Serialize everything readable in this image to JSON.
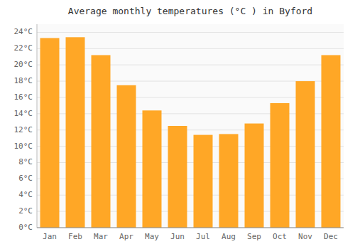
{
  "chart_data": {
    "type": "bar",
    "title": "Average monthly temperatures (°C ) in Byford",
    "categories": [
      "Jan",
      "Feb",
      "Mar",
      "Apr",
      "May",
      "Jun",
      "Jul",
      "Aug",
      "Sep",
      "Oct",
      "Nov",
      "Dec"
    ],
    "values": [
      23.3,
      23.4,
      21.2,
      17.5,
      14.4,
      12.5,
      11.4,
      11.5,
      12.8,
      15.3,
      18.0,
      21.2
    ],
    "color": "#FFA726",
    "ylim": [
      0,
      25
    ],
    "yticks": [
      {
        "value": 0,
        "label": "0°C"
      },
      {
        "value": 2,
        "label": "2°C"
      },
      {
        "value": 4,
        "label": "4°C"
      },
      {
        "value": 6,
        "label": "6°C"
      },
      {
        "value": 8,
        "label": "8°C"
      },
      {
        "value": 10,
        "label": "10°C"
      },
      {
        "value": 12,
        "label": "12°C"
      },
      {
        "value": 14,
        "label": "14°C"
      },
      {
        "value": 16,
        "label": "16°C"
      },
      {
        "value": 18,
        "label": "18°C"
      },
      {
        "value": 20,
        "label": "20°C"
      },
      {
        "value": 22,
        "label": "22°C"
      },
      {
        "value": 24,
        "label": "24°C"
      }
    ],
    "grid": true
  }
}
